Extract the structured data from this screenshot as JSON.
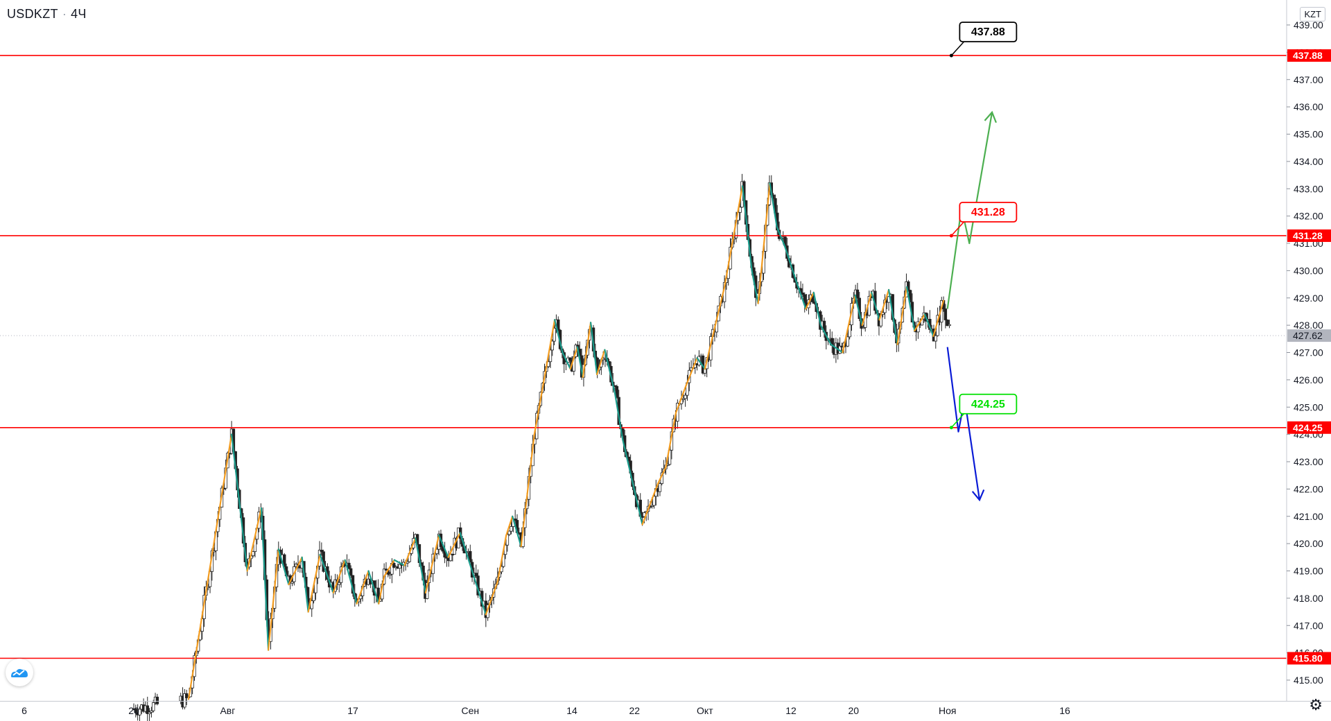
{
  "header": {
    "symbol": "USDKZT",
    "interval": "4Ч",
    "currency": "KZT"
  },
  "chart_data": {
    "type": "candlestick",
    "ylim": [
      414.2,
      439.5
    ],
    "y_ticks": [
      415,
      416,
      417,
      418,
      419,
      420,
      421,
      422,
      423,
      424,
      425,
      426,
      427,
      428,
      429,
      430,
      431,
      432,
      433,
      434,
      435,
      436,
      437,
      438,
      439
    ],
    "x_axis_labels": [
      {
        "label": "6",
        "day": 6
      },
      {
        "label": "20",
        "day": 20
      },
      {
        "label": "Авг",
        "day": 32
      },
      {
        "label": "17",
        "day": 48
      },
      {
        "label": "Сен",
        "day": 63
      },
      {
        "label": "14",
        "day": 76
      },
      {
        "label": "22",
        "day": 84
      },
      {
        "label": "Окт",
        "day": 93
      },
      {
        "label": "12",
        "day": 104
      },
      {
        "label": "20",
        "day": 112
      },
      {
        "label": "Ноя",
        "day": 124
      },
      {
        "label": "16",
        "day": 139
      }
    ],
    "last_price": 427.62,
    "levels": [
      {
        "value": 437.88,
        "label": "437.88",
        "color": "#000000"
      },
      {
        "value": 431.28,
        "label": "431.28",
        "color": "#ff0000"
      },
      {
        "value": 424.25,
        "label": "424.25",
        "color": "#00e000"
      },
      {
        "value": 415.8,
        "label": "415.80",
        "color": "#ff0000"
      }
    ],
    "zigzag": [
      [
        27,
        414.3
      ],
      [
        32.5,
        424.0
      ],
      [
        34.5,
        419.0
      ],
      [
        36.3,
        421.3
      ],
      [
        37.2,
        416.1
      ],
      [
        38.5,
        419.8
      ],
      [
        39.8,
        418.5
      ],
      [
        41.5,
        419.5
      ],
      [
        42.3,
        417.5
      ],
      [
        43.8,
        419.6
      ],
      [
        45.5,
        418.2
      ],
      [
        47,
        419.4
      ],
      [
        48.5,
        417.8
      ],
      [
        50,
        419.0
      ],
      [
        51.3,
        417.8
      ],
      [
        52,
        418.8
      ],
      [
        53.3,
        419.4
      ],
      [
        54.6,
        419.2
      ],
      [
        56,
        420.2
      ],
      [
        57.3,
        418.2
      ],
      [
        59,
        420.3
      ],
      [
        60.2,
        419.5
      ],
      [
        61.7,
        420.4
      ],
      [
        65,
        417.4
      ],
      [
        66.5,
        418.6
      ],
      [
        67.6,
        420.3
      ],
      [
        68.4,
        421.0
      ],
      [
        69.5,
        419.9
      ],
      [
        71.2,
        424.0
      ],
      [
        73.8,
        428.2
      ],
      [
        74.8,
        427.0
      ],
      [
        75.8,
        426.4
      ],
      [
        76.7,
        427.2
      ],
      [
        77.4,
        426.1
      ],
      [
        78.4,
        428.1
      ],
      [
        79.2,
        426.2
      ],
      [
        80.2,
        427.1
      ],
      [
        81.5,
        425.5
      ],
      [
        82.5,
        423.8
      ],
      [
        85,
        420.7
      ],
      [
        87,
        422.2
      ],
      [
        88,
        422.8
      ],
      [
        89.3,
        424.8
      ],
      [
        90.6,
        425.8
      ],
      [
        92,
        426.8
      ],
      [
        93,
        426.4
      ],
      [
        95.5,
        429.4
      ],
      [
        97.8,
        433.1
      ],
      [
        99,
        430.0
      ],
      [
        99.8,
        428.8
      ],
      [
        101.3,
        433.2
      ],
      [
        102.2,
        431.6
      ],
      [
        103.2,
        430.9
      ],
      [
        104.8,
        429.5
      ],
      [
        105.9,
        428.6
      ],
      [
        106.9,
        429.2
      ],
      [
        107.8,
        428.0
      ],
      [
        109.1,
        427.3
      ],
      [
        110.6,
        427.0
      ],
      [
        112.2,
        429.1
      ],
      [
        113.1,
        428.0
      ],
      [
        114.3,
        429.2
      ],
      [
        115.3,
        428.2
      ],
      [
        116.5,
        429.3
      ],
      [
        117.6,
        427.3
      ],
      [
        118.8,
        429.4
      ],
      [
        119.8,
        427.8
      ],
      [
        121.1,
        428.4
      ],
      [
        122.2,
        427.6
      ],
      [
        123.5,
        428.9
      ]
    ],
    "forecast_up": [
      [
        124.0,
        428.6
      ],
      [
        125.8,
        432.3
      ],
      [
        126.8,
        431.0
      ],
      [
        129.7,
        435.8
      ]
    ],
    "forecast_down": [
      [
        124.0,
        427.2
      ],
      [
        125.4,
        424.1
      ],
      [
        126.2,
        425.3
      ],
      [
        128.1,
        421.6
      ]
    ]
  }
}
